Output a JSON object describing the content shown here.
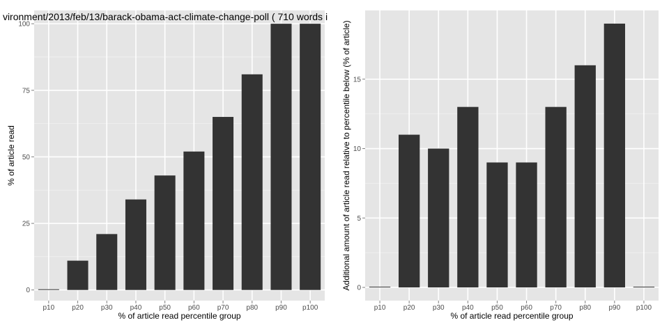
{
  "chart_data": [
    {
      "type": "bar",
      "title": "vironment/2013/feb/13/barack-obama-act-climate-change-poll ( 710 words i",
      "xlabel": "% of article read percentile group",
      "ylabel": "% of article read",
      "categories": [
        "p10",
        "p20",
        "p30",
        "p40",
        "p50",
        "p60",
        "p70",
        "p80",
        "p90",
        "p100"
      ],
      "values": [
        0,
        11,
        21,
        34,
        43,
        52,
        65,
        81,
        100,
        100
      ],
      "ylim": [
        -4,
        105
      ],
      "yticks": [
        0,
        25,
        50,
        75,
        100
      ],
      "grid": true,
      "bar_color": "#333333",
      "panel_background": "#e5e5e5",
      "grid_color": "#ffffff"
    },
    {
      "type": "bar",
      "title": "",
      "xlabel": "% of article read percentile group",
      "ylabel": "Additional amount of article read relative to percentile below (% of article)",
      "categories": [
        "p10",
        "p20",
        "p30",
        "p40",
        "p50",
        "p60",
        "p70",
        "p80",
        "p90",
        "p100"
      ],
      "values": [
        0,
        11,
        10,
        13,
        9,
        9,
        13,
        16,
        19,
        0
      ],
      "ylim": [
        -0.95,
        19.95
      ],
      "yticks": [
        0,
        5,
        10,
        15
      ],
      "grid": true,
      "bar_color": "#333333",
      "panel_background": "#e5e5e5",
      "grid_color": "#ffffff"
    }
  ]
}
